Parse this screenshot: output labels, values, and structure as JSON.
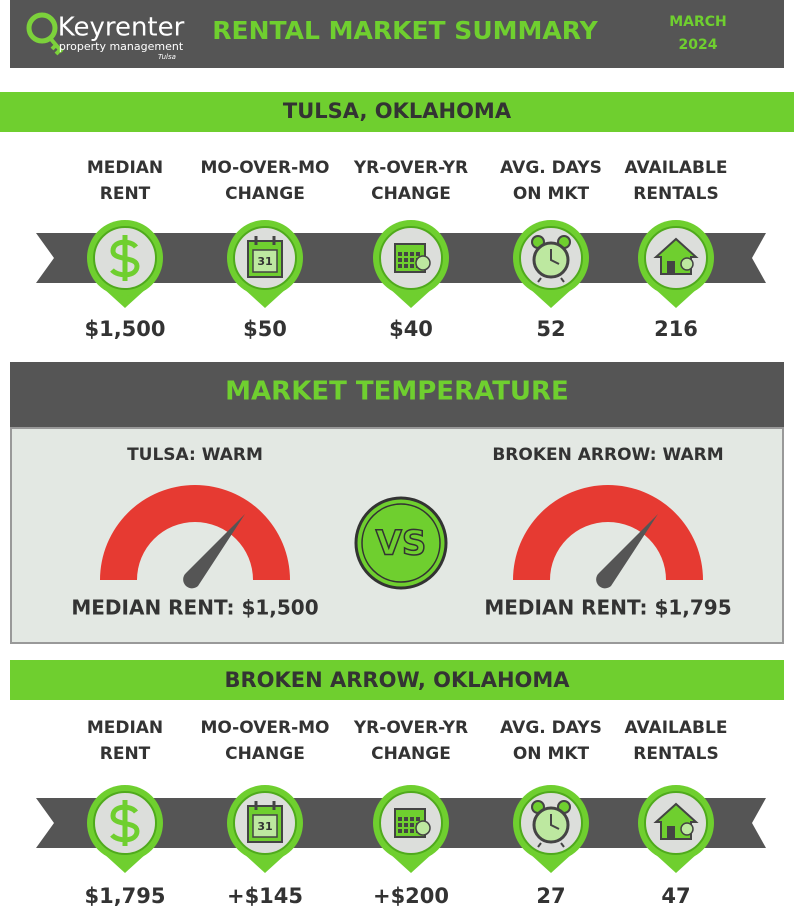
{
  "header": {
    "logo": {
      "name": "Keyrenter",
      "tagline": "property management",
      "city": "Tulsa"
    },
    "title": "RENTAL MARKET SUMMARY",
    "month": "MARCH",
    "year": "2024"
  },
  "calendar_icon_day": "31",
  "tulsa": {
    "title": "TULSA, OKLAHOMA",
    "metrics": [
      {
        "label": [
          "MEDIAN",
          "RENT"
        ],
        "value": "$1,500"
      },
      {
        "label": [
          "MO-OVER-MO",
          "CHANGE"
        ],
        "value": "$50"
      },
      {
        "label": [
          "YR-OVER-YR",
          "CHANGE"
        ],
        "value": "$40"
      },
      {
        "label": [
          "AVG. DAYS",
          "ON MKT"
        ],
        "value": "52"
      },
      {
        "label": [
          "AVAILABLE",
          "RENTALS"
        ],
        "value": "216"
      }
    ]
  },
  "market_temperature": {
    "title": "MARKET TEMPERATURE",
    "vs": "VS",
    "left": {
      "label": "TULSA: WARM",
      "median": "MEDIAN RENT: $1,500"
    },
    "right": {
      "label": "BROKEN ARROW: WARM",
      "median": "MEDIAN RENT: $1,795"
    }
  },
  "broken_arrow": {
    "title": "BROKEN ARROW, OKLAHOMA",
    "metrics": [
      {
        "label": [
          "MEDIAN",
          "RENT"
        ],
        "value": "$1,795"
      },
      {
        "label": [
          "MO-OVER-MO",
          "CHANGE"
        ],
        "value": "+$145"
      },
      {
        "label": [
          "YR-OVER-YR",
          "CHANGE"
        ],
        "value": "+$200"
      },
      {
        "label": [
          "AVG. DAYS",
          "ON MKT"
        ],
        "value": "27"
      },
      {
        "label": [
          "AVAILABLE",
          "RENTALS"
        ],
        "value": "47"
      }
    ]
  }
}
